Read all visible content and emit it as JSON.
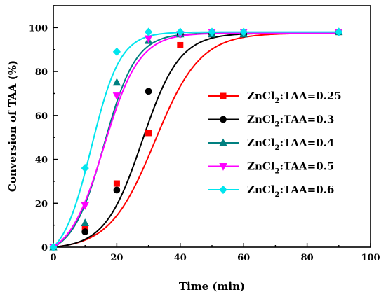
{
  "chart_data": {
    "type": "scatter",
    "title": "",
    "xlabel": "Time (min)",
    "ylabel": "Conversion of TAA (%)",
    "xlim": [
      0,
      100
    ],
    "ylim": [
      0,
      110
    ],
    "xticks": [
      "0",
      "20",
      "40",
      "60",
      "80",
      "100"
    ],
    "yticks": [
      "0",
      "20",
      "40",
      "60",
      "80",
      "100"
    ],
    "grid": false,
    "legend_position": "right-center",
    "series": [
      {
        "name_main": "ZnCl",
        "name_sub": "2",
        "name_rest": ":TAA=0.25",
        "color": "#ff0000",
        "marker": "square",
        "points": [
          [
            0,
            0
          ],
          [
            10,
            9
          ],
          [
            20,
            29
          ],
          [
            30,
            52
          ],
          [
            40,
            92
          ],
          [
            50,
            97
          ],
          [
            60,
            97
          ],
          [
            90,
            98
          ]
        ],
        "fit": {
          "max": 97.5,
          "k": 0.14,
          "x0": 32
        }
      },
      {
        "name_main": "ZnCl",
        "name_sub": "2",
        "name_rest": ":TAA=0.3",
        "color": "#000000",
        "marker": "circle",
        "points": [
          [
            0,
            0
          ],
          [
            10,
            7
          ],
          [
            20,
            26
          ],
          [
            30,
            71
          ],
          [
            40,
            97
          ],
          [
            50,
            97
          ],
          [
            60,
            97
          ],
          [
            90,
            98
          ]
        ],
        "fit": {
          "max": 97.5,
          "k": 0.17,
          "x0": 28
        }
      },
      {
        "name_main": "ZnCl",
        "name_sub": "2",
        "name_rest": ":TAA=0.4",
        "color": "#008080",
        "marker": "triangle-up",
        "points": [
          [
            0,
            0
          ],
          [
            10,
            11
          ],
          [
            20,
            75
          ],
          [
            30,
            94
          ],
          [
            40,
            97
          ],
          [
            50,
            97
          ],
          [
            60,
            97
          ],
          [
            90,
            98
          ]
        ],
        "fit": {
          "max": 97.5,
          "k": 0.2,
          "x0": 16
        }
      },
      {
        "name_main": "ZnCl",
        "name_sub": "2",
        "name_rest": ":TAA=0.5",
        "color": "#ff00ff",
        "marker": "triangle-down",
        "points": [
          [
            0,
            0
          ],
          [
            10,
            19
          ],
          [
            20,
            69
          ],
          [
            30,
            95
          ],
          [
            40,
            97
          ],
          [
            50,
            98
          ],
          [
            60,
            98
          ],
          [
            90,
            98
          ]
        ],
        "fit": {
          "max": 97.5,
          "k": 0.18,
          "x0": 16
        }
      },
      {
        "name_main": "ZnCl",
        "name_sub": "2",
        "name_rest": ":TAA=0.6",
        "color": "#00e5ee",
        "marker": "diamond",
        "points": [
          [
            0,
            0
          ],
          [
            10,
            36
          ],
          [
            20,
            89
          ],
          [
            30,
            98
          ],
          [
            40,
            98
          ],
          [
            50,
            98
          ],
          [
            60,
            98
          ],
          [
            90,
            98
          ]
        ],
        "fit": {
          "max": 98,
          "k": 0.22,
          "x0": 12
        }
      }
    ]
  }
}
